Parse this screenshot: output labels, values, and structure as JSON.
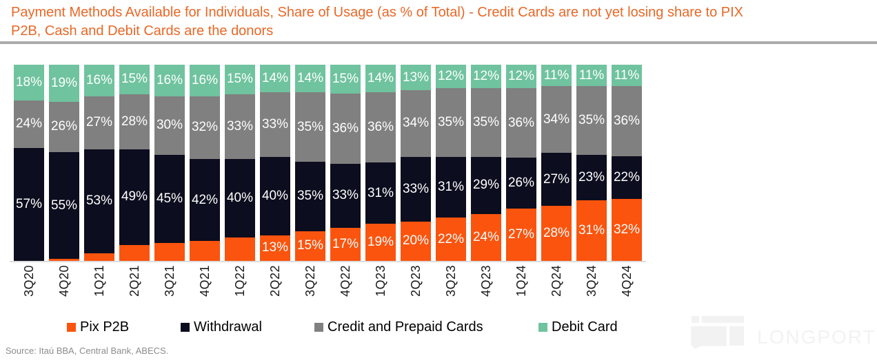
{
  "title": {
    "line1": "Payment Methods Available for Individuals, Share of Usage (as % of Total) - Credit Cards are not yet losing share to PIX",
    "line2": "P2B, Cash and Debit Cards are the donors"
  },
  "source": "Source: Itaú BBA, Central Bank, ABECS.",
  "watermark": {
    "brand": "LONGPORT"
  },
  "colors": {
    "title_orange": "#EA6726",
    "pix_orange": "#FB540E",
    "withdrawal_black": "#0C0D1E",
    "credit_gray": "#808080",
    "debit_green": "#6FC39E"
  },
  "chart_data": {
    "type": "bar",
    "stacked": true,
    "orientation": "vertical",
    "ylim": [
      0,
      100
    ],
    "grid": false,
    "legend_position": "bottom",
    "value_suffix": "%",
    "categories": [
      "3Q20",
      "4Q20",
      "1Q21",
      "2Q21",
      "3Q21",
      "4Q21",
      "1Q22",
      "2Q22",
      "3Q22",
      "4Q22",
      "1Q23",
      "2Q23",
      "3Q23",
      "4Q23",
      "1Q24",
      "2Q24",
      "3Q24",
      "4Q24"
    ],
    "series": [
      {
        "name": "Pix P2B",
        "color": "#FB540E",
        "values": [
          0,
          1,
          4,
          8,
          9,
          10,
          12,
          13,
          15,
          17,
          19,
          20,
          22,
          24,
          27,
          28,
          31,
          32
        ],
        "labels": [
          "",
          "",
          "",
          "",
          "",
          "",
          "",
          "13%",
          "15%",
          "17%",
          "19%",
          "20%",
          "22%",
          "24%",
          "27%",
          "28%",
          "31%",
          "32%"
        ]
      },
      {
        "name": "Withdrawal",
        "color": "#0C0D1E",
        "values": [
          57,
          55,
          53,
          49,
          45,
          42,
          40,
          40,
          35,
          33,
          31,
          33,
          31,
          29,
          26,
          27,
          23,
          22
        ]
      },
      {
        "name": "Credit and Prepaid Cards",
        "color": "#808080",
        "values": [
          24,
          26,
          27,
          28,
          30,
          32,
          33,
          33,
          35,
          36,
          36,
          34,
          35,
          35,
          36,
          34,
          35,
          36
        ]
      },
      {
        "name": "Debit Card",
        "color": "#6FC39E",
        "values": [
          18,
          19,
          16,
          15,
          16,
          16,
          15,
          14,
          14,
          15,
          14,
          13,
          12,
          12,
          12,
          11,
          11,
          11
        ]
      }
    ]
  }
}
